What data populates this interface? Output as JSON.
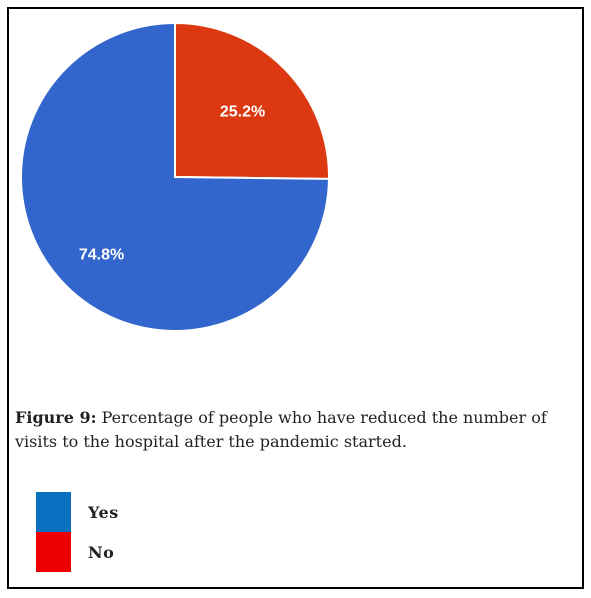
{
  "chart_data": {
    "type": "pie",
    "title": "",
    "slices": [
      {
        "label": "No",
        "value": 25.2,
        "display": "25.2%",
        "color": "#dc3912"
      },
      {
        "label": "Yes",
        "value": 74.8,
        "display": "74.8%",
        "color": "#3366cc"
      }
    ],
    "start_angle": "12 o'clock",
    "direction": "clockwise"
  },
  "caption": {
    "label": "Figure 9:",
    "text": " Percentage of people who have reduced the number of visits to the hospital after the pandemic started."
  },
  "legend": {
    "items": [
      {
        "label": "Yes",
        "color": "#0a70c0"
      },
      {
        "label": "No",
        "color": "#ee0000"
      }
    ]
  }
}
